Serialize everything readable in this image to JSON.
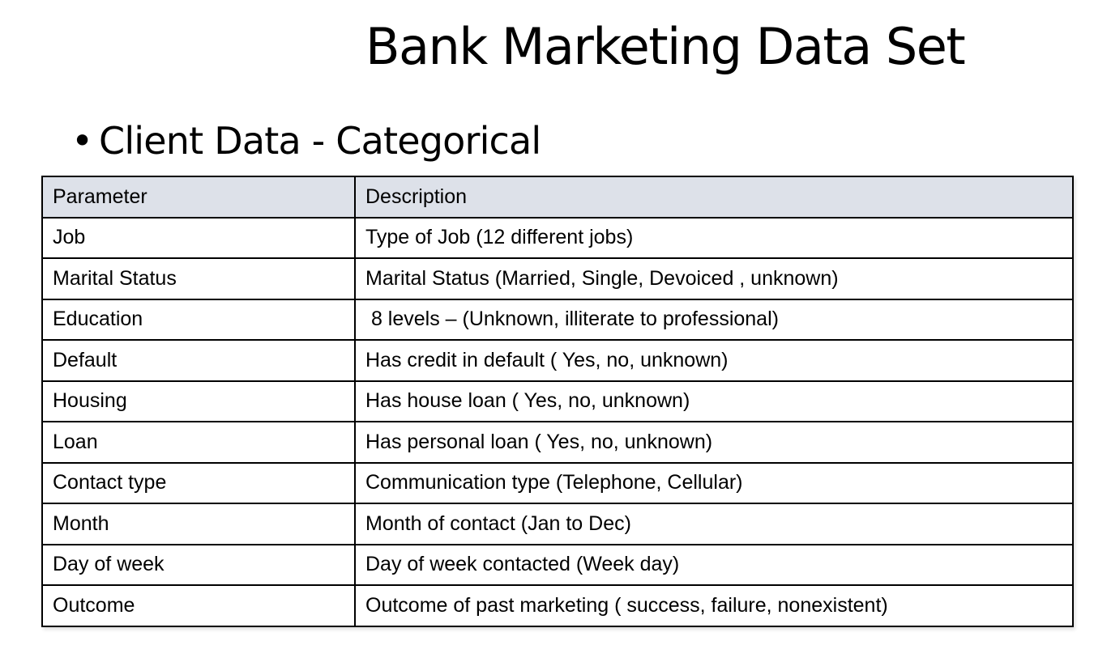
{
  "title": "Bank Marketing Data Set",
  "bullet": {
    "symbol": "•",
    "text": "Client Data - Categorical"
  },
  "table": {
    "headers": [
      "Parameter",
      "Description"
    ],
    "rows": [
      [
        "Job",
        "Type of Job (12 different jobs)"
      ],
      [
        "Marital Status",
        "Marital Status (Married, Single, Devoiced , unknown)"
      ],
      [
        "Education",
        " 8 levels – (Unknown, illiterate to professional)"
      ],
      [
        "Default",
        "Has credit in default ( Yes, no, unknown)"
      ],
      [
        "Housing",
        "Has house loan ( Yes, no, unknown)"
      ],
      [
        "Loan",
        "Has personal loan ( Yes, no, unknown)"
      ],
      [
        "Contact type",
        "Communication type (Telephone, Cellular)"
      ],
      [
        "Month",
        "Month of contact (Jan to Dec)"
      ],
      [
        "Day of week",
        "Day of week contacted (Week day)"
      ],
      [
        "Outcome",
        "Outcome of past marketing ( success, failure, nonexistent)"
      ]
    ]
  },
  "colors": {
    "header_background": "#dde1e9",
    "border": "#000000",
    "text": "#000000",
    "background": "#ffffff"
  }
}
